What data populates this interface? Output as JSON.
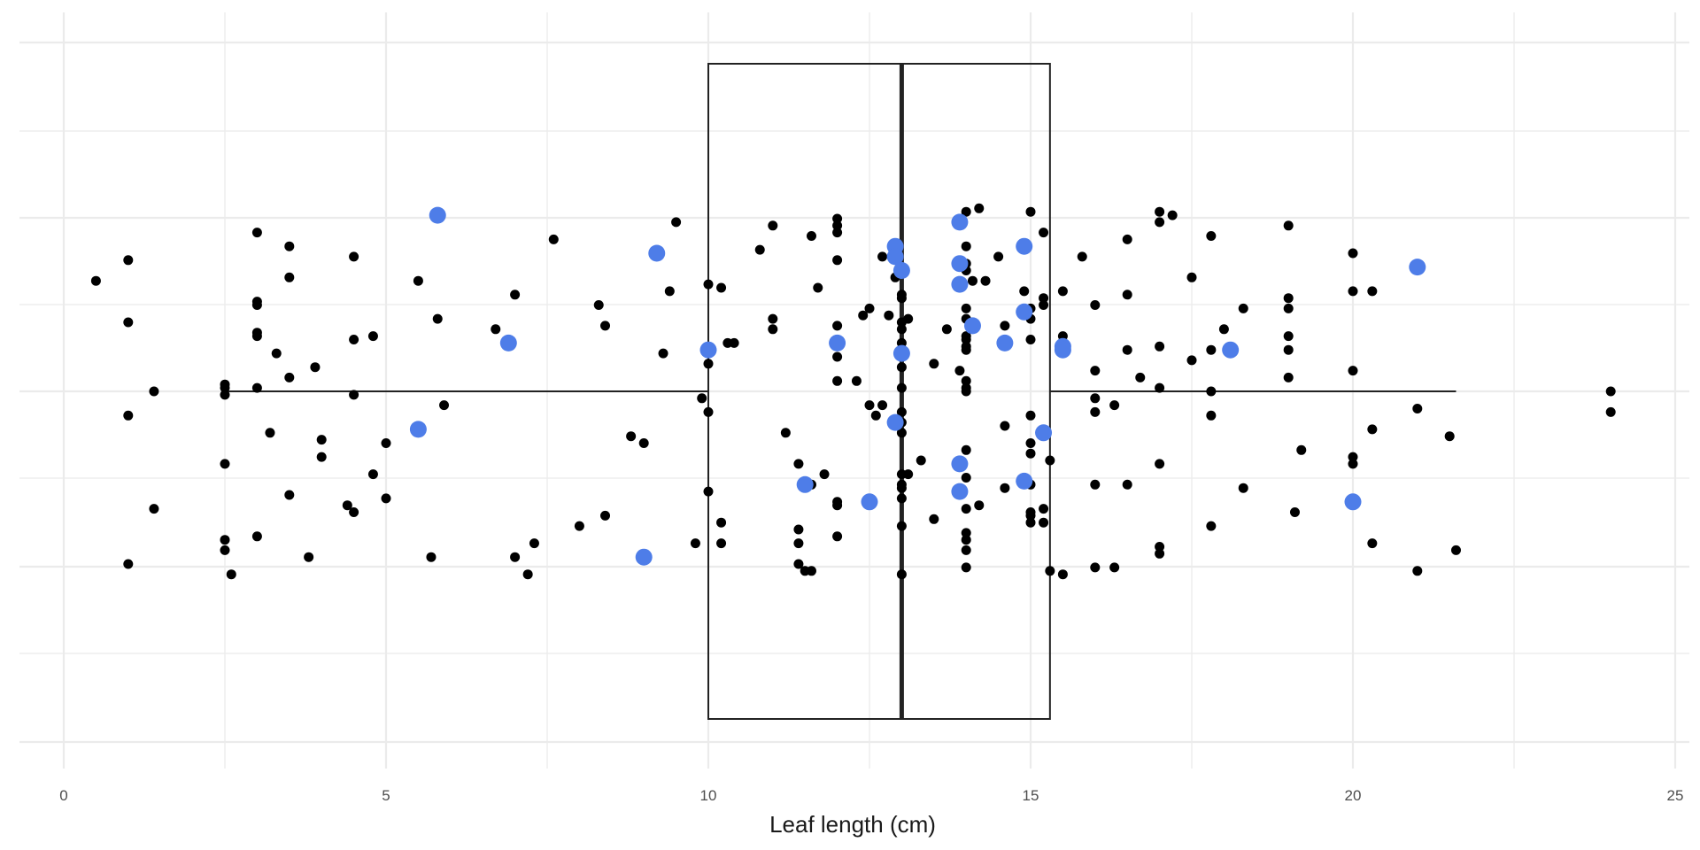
{
  "chart_data": {
    "type": "scatter",
    "title": "",
    "xlabel": "Leaf length (cm)",
    "ylabel": "",
    "xlim": [
      -0.7,
      25.3
    ],
    "x_ticks": [
      0,
      5,
      10,
      15,
      20,
      25
    ],
    "x_tick_labels": [
      "0",
      "5",
      "10",
      "15",
      "20",
      "25"
    ],
    "grid": true,
    "boxplot": {
      "q1": 10,
      "median": 13,
      "q3": 15.3,
      "whisker_low": 2.5,
      "whisker_high": 21.6
    },
    "jitter_points": [
      [
        0.5,
        0.32
      ],
      [
        1,
        0.2
      ],
      [
        1,
        0.38
      ],
      [
        1,
        -0.07
      ],
      [
        1,
        -0.5
      ],
      [
        1.4,
        0
      ],
      [
        1.4,
        -0.34
      ],
      [
        2.5,
        0.02
      ],
      [
        2.5,
        0.01
      ],
      [
        2.5,
        -0.01
      ],
      [
        2.5,
        -0.21
      ],
      [
        2.5,
        -0.43
      ],
      [
        2.5,
        -0.46
      ],
      [
        2.6,
        -0.53
      ],
      [
        3,
        0.46
      ],
      [
        3,
        0.25
      ],
      [
        3,
        0.26
      ],
      [
        3,
        0.16
      ],
      [
        3,
        0.17
      ],
      [
        3,
        0.01
      ],
      [
        3,
        -0.42
      ],
      [
        3.2,
        -0.12
      ],
      [
        3.3,
        0.11
      ],
      [
        3.5,
        0.42
      ],
      [
        3.5,
        0.33
      ],
      [
        3.5,
        0.04
      ],
      [
        3.5,
        -0.3
      ],
      [
        3.8,
        -0.48
      ],
      [
        3.9,
        0.07
      ],
      [
        4,
        -0.14
      ],
      [
        4,
        -0.19
      ],
      [
        4.4,
        -0.33
      ],
      [
        4.5,
        0.39
      ],
      [
        4.5,
        0.15
      ],
      [
        4.5,
        -0.01
      ],
      [
        4.5,
        -0.35
      ],
      [
        4.8,
        0.16
      ],
      [
        4.8,
        -0.24
      ],
      [
        5,
        -0.15
      ],
      [
        5,
        -0.31
      ],
      [
        5.5,
        0.32
      ],
      [
        5.7,
        -0.48
      ],
      [
        5.8,
        0.21
      ],
      [
        5.9,
        -0.04
      ],
      [
        6.7,
        0.18
      ],
      [
        7,
        0.28
      ],
      [
        7,
        -0.48
      ],
      [
        7.2,
        -0.53
      ],
      [
        7.3,
        -0.44
      ],
      [
        7.6,
        0.44
      ],
      [
        8,
        -0.39
      ],
      [
        8.3,
        0.25
      ],
      [
        8.4,
        0.19
      ],
      [
        8.4,
        -0.36
      ],
      [
        8.8,
        -0.13
      ],
      [
        9,
        -0.15
      ],
      [
        9.3,
        0.11
      ],
      [
        9.4,
        0.29
      ],
      [
        9.5,
        0.49
      ],
      [
        9.8,
        -0.44
      ],
      [
        9.9,
        -0.02
      ],
      [
        10,
        0.31
      ],
      [
        10,
        0.08
      ],
      [
        10,
        -0.06
      ],
      [
        10,
        -0.29
      ],
      [
        10.2,
        0.3
      ],
      [
        10.2,
        -0.38
      ],
      [
        10.2,
        -0.44
      ],
      [
        10.3,
        0.14
      ],
      [
        10.4,
        0.14
      ],
      [
        10.8,
        0.41
      ],
      [
        11,
        0.21
      ],
      [
        11,
        0.18
      ],
      [
        11,
        0.48
      ],
      [
        11.2,
        -0.12
      ],
      [
        11.4,
        -0.21
      ],
      [
        11.4,
        -0.4
      ],
      [
        11.4,
        -0.44
      ],
      [
        11.4,
        -0.5
      ],
      [
        11.5,
        -0.52
      ],
      [
        11.6,
        -0.27
      ],
      [
        11.6,
        -0.52
      ],
      [
        11.6,
        0.45
      ],
      [
        11.7,
        0.3
      ],
      [
        11.8,
        -0.24
      ],
      [
        12,
        0.5
      ],
      [
        12,
        0.48
      ],
      [
        12,
        0.46
      ],
      [
        12,
        0.38
      ],
      [
        12,
        0.19
      ],
      [
        12,
        0.1
      ],
      [
        12,
        0.03
      ],
      [
        12,
        -0.32
      ],
      [
        12,
        -0.33
      ],
      [
        12,
        -0.42
      ],
      [
        12.3,
        0.03
      ],
      [
        12.4,
        0.22
      ],
      [
        12.5,
        0.24
      ],
      [
        12.5,
        -0.04
      ],
      [
        12.6,
        -0.07
      ],
      [
        12.7,
        0.39
      ],
      [
        12.7,
        -0.04
      ],
      [
        12.8,
        0.22
      ],
      [
        12.9,
        0.33
      ],
      [
        13,
        0.28
      ],
      [
        13,
        0.27
      ],
      [
        13,
        0.2
      ],
      [
        13,
        0.18
      ],
      [
        13,
        0.14
      ],
      [
        13,
        0.1
      ],
      [
        13,
        0.07
      ],
      [
        13,
        0.01
      ],
      [
        13,
        -0.06
      ],
      [
        13,
        -0.09
      ],
      [
        13,
        -0.12
      ],
      [
        13,
        -0.24
      ],
      [
        13,
        -0.27
      ],
      [
        13,
        -0.28
      ],
      [
        13,
        -0.31
      ],
      [
        13,
        -0.39
      ],
      [
        13,
        -0.53
      ],
      [
        13.1,
        0.21
      ],
      [
        13.1,
        -0.24
      ],
      [
        13.3,
        -0.2
      ],
      [
        13.5,
        -0.37
      ],
      [
        13.5,
        0.08
      ],
      [
        13.7,
        0.18
      ],
      [
        13.9,
        0.06
      ],
      [
        14,
        0.52
      ],
      [
        14,
        0.42
      ],
      [
        14,
        0.37
      ],
      [
        14,
        0.35
      ],
      [
        14,
        0.24
      ],
      [
        14,
        0.21
      ],
      [
        14,
        0.16
      ],
      [
        14,
        0.15
      ],
      [
        14,
        0.13
      ],
      [
        14,
        0.12
      ],
      [
        14,
        0.03
      ],
      [
        14,
        0.01
      ],
      [
        14,
        0
      ],
      [
        14,
        -0.17
      ],
      [
        14,
        -0.25
      ],
      [
        14,
        -0.34
      ],
      [
        14,
        -0.41
      ],
      [
        14,
        -0.43
      ],
      [
        14,
        -0.46
      ],
      [
        14,
        -0.51
      ],
      [
        14.1,
        0.32
      ],
      [
        14.2,
        0.53
      ],
      [
        14.2,
        -0.33
      ],
      [
        14.3,
        0.32
      ],
      [
        14.5,
        0.39
      ],
      [
        14.6,
        -0.1
      ],
      [
        14.6,
        0.19
      ],
      [
        14.6,
        -0.28
      ],
      [
        14.9,
        0.29
      ],
      [
        15,
        0.52
      ],
      [
        15,
        0.24
      ],
      [
        15,
        0.21
      ],
      [
        15,
        0.15
      ],
      [
        15,
        -0.07
      ],
      [
        15,
        -0.15
      ],
      [
        15,
        -0.18
      ],
      [
        15,
        -0.35
      ],
      [
        15,
        -0.36
      ],
      [
        15,
        -0.38
      ],
      [
        15,
        -0.27
      ],
      [
        15.2,
        0.46
      ],
      [
        15.2,
        0.27
      ],
      [
        15.2,
        0.25
      ],
      [
        15.2,
        -0.34
      ],
      [
        15.2,
        -0.38
      ],
      [
        15.3,
        -0.2
      ],
      [
        15.3,
        -0.52
      ],
      [
        15.5,
        0.29
      ],
      [
        15.5,
        0.16
      ],
      [
        15.5,
        -0.53
      ],
      [
        15.8,
        0.39
      ],
      [
        16,
        0.25
      ],
      [
        16,
        0.06
      ],
      [
        16,
        -0.02
      ],
      [
        16,
        -0.06
      ],
      [
        16,
        -0.27
      ],
      [
        16,
        -0.51
      ],
      [
        16.3,
        -0.04
      ],
      [
        16.3,
        -0.51
      ],
      [
        16.5,
        0.44
      ],
      [
        16.5,
        0.28
      ],
      [
        16.5,
        0.12
      ],
      [
        16.5,
        -0.27
      ],
      [
        16.7,
        0.04
      ],
      [
        17,
        0.52
      ],
      [
        17,
        0.49
      ],
      [
        17,
        0.13
      ],
      [
        17,
        0.01
      ],
      [
        17,
        -0.21
      ],
      [
        17,
        -0.45
      ],
      [
        17,
        -0.47
      ],
      [
        17.2,
        0.51
      ],
      [
        17.5,
        0.33
      ],
      [
        17.5,
        0.09
      ],
      [
        17.8,
        0.45
      ],
      [
        17.8,
        0.12
      ],
      [
        17.8,
        0
      ],
      [
        17.8,
        -0.07
      ],
      [
        17.8,
        -0.39
      ],
      [
        18,
        0.18
      ],
      [
        18.3,
        0.24
      ],
      [
        18.3,
        -0.28
      ],
      [
        19,
        0.27
      ],
      [
        19,
        0.24
      ],
      [
        19,
        0.16
      ],
      [
        19,
        0.12
      ],
      [
        19,
        0.04
      ],
      [
        19,
        0.48
      ],
      [
        19.1,
        -0.35
      ],
      [
        19.2,
        -0.17
      ],
      [
        20,
        0.4
      ],
      [
        20,
        0.29
      ],
      [
        20,
        0.06
      ],
      [
        20,
        -0.19
      ],
      [
        20,
        -0.21
      ],
      [
        20.3,
        0.29
      ],
      [
        20.3,
        -0.11
      ],
      [
        20.3,
        -0.44
      ],
      [
        21,
        -0.05
      ],
      [
        21,
        -0.52
      ],
      [
        21.5,
        -0.13
      ],
      [
        21.6,
        -0.46
      ],
      [
        24,
        0
      ],
      [
        24,
        -0.06
      ]
    ],
    "highlighted_points": [
      [
        5.8,
        0.51
      ],
      [
        9.2,
        0.4
      ],
      [
        6.9,
        0.14
      ],
      [
        5.5,
        -0.11
      ],
      [
        9,
        -0.48
      ],
      [
        10,
        0.12
      ],
      [
        11.5,
        -0.27
      ],
      [
        12,
        0.14
      ],
      [
        12.5,
        -0.32
      ],
      [
        12.9,
        0.42
      ],
      [
        12.9,
        0.39
      ],
      [
        13,
        0.35
      ],
      [
        13,
        0.11
      ],
      [
        12.9,
        -0.09
      ],
      [
        13.9,
        0.49
      ],
      [
        13.9,
        0.37
      ],
      [
        13.9,
        0.31
      ],
      [
        14.1,
        0.19
      ],
      [
        13.9,
        -0.21
      ],
      [
        13.9,
        -0.29
      ],
      [
        14.6,
        0.14
      ],
      [
        14.9,
        0.42
      ],
      [
        14.9,
        0.23
      ],
      [
        14.9,
        -0.26
      ],
      [
        15.2,
        -0.12
      ],
      [
        15.5,
        0.13
      ],
      [
        15.5,
        0.12
      ],
      [
        18.1,
        0.12
      ],
      [
        20,
        -0.32
      ],
      [
        21,
        0.36
      ]
    ],
    "point_color": "#000000",
    "highlight_color": "#4e7de8",
    "box_color": "#222222",
    "grid_color": "#ebebeb"
  }
}
